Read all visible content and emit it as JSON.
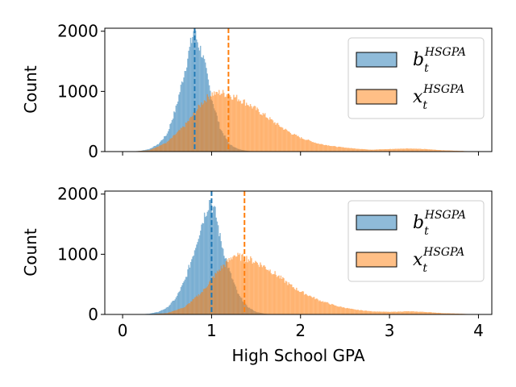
{
  "chart_data": [
    {
      "type": "histogram",
      "panel": "top",
      "xlabel": "",
      "ylabel": "Count",
      "xlim": [
        -0.2,
        4.15
      ],
      "ylim": [
        0,
        2050
      ],
      "yticks": [
        0,
        1000,
        2000
      ],
      "ytick_labels": [
        "0",
        "1000",
        "2000"
      ],
      "xticks": [
        0,
        1,
        2,
        3,
        4
      ],
      "xtick_labels": [],
      "series": [
        {
          "name": "b_t^HSGPA",
          "label_main": "b",
          "label_sub": "t",
          "label_sup": "HSGPA",
          "color": "#1f77b4",
          "mean_line": 0.81,
          "peak_x": 0.8,
          "peak_count": 2000,
          "profile": [
            [
              0.1,
              0
            ],
            [
              0.2,
              10
            ],
            [
              0.3,
              40
            ],
            [
              0.4,
              120
            ],
            [
              0.5,
              290
            ],
            [
              0.6,
              720
            ],
            [
              0.7,
              1350
            ],
            [
              0.8,
              2000
            ],
            [
              0.9,
              1600
            ],
            [
              1.0,
              900
            ],
            [
              1.1,
              380
            ],
            [
              1.2,
              120
            ],
            [
              1.3,
              40
            ],
            [
              1.4,
              10
            ],
            [
              1.5,
              0
            ]
          ]
        },
        {
          "name": "x_t^HSGPA",
          "label_main": "x",
          "label_sub": "t",
          "label_sup": "HSGPA",
          "color": "#ff7f0e",
          "mean_line": 1.19,
          "peak_x": 1.05,
          "peak_count": 990,
          "profile": [
            [
              0.1,
              0
            ],
            [
              0.3,
              20
            ],
            [
              0.5,
              150
            ],
            [
              0.7,
              430
            ],
            [
              0.8,
              620
            ],
            [
              0.9,
              820
            ],
            [
              1.0,
              960
            ],
            [
              1.1,
              980
            ],
            [
              1.2,
              940
            ],
            [
              1.3,
              880
            ],
            [
              1.4,
              800
            ],
            [
              1.5,
              700
            ],
            [
              1.6,
              600
            ],
            [
              1.7,
              490
            ],
            [
              1.8,
              390
            ],
            [
              1.9,
              300
            ],
            [
              2.0,
              230
            ],
            [
              2.2,
              130
            ],
            [
              2.4,
              80
            ],
            [
              2.6,
              50
            ],
            [
              2.8,
              30
            ],
            [
              3.0,
              40
            ],
            [
              3.2,
              50
            ],
            [
              3.4,
              40
            ],
            [
              3.6,
              20
            ],
            [
              3.8,
              10
            ],
            [
              3.95,
              0
            ]
          ]
        }
      ]
    },
    {
      "type": "histogram",
      "panel": "bottom",
      "xlabel": "High School GPA",
      "ylabel": "Count",
      "xlim": [
        -0.2,
        4.15
      ],
      "ylim": [
        0,
        2050
      ],
      "yticks": [
        0,
        1000,
        2000
      ],
      "ytick_labels": [
        "0",
        "1000",
        "2000"
      ],
      "xticks": [
        0,
        1,
        2,
        3,
        4
      ],
      "xtick_labels": [
        "0",
        "1",
        "2",
        "3",
        "4"
      ],
      "series": [
        {
          "name": "b_t^HSGPA",
          "label_main": "b",
          "label_sub": "t",
          "label_sup": "HSGPA",
          "color": "#1f77b4",
          "mean_line": 1.0,
          "peak_x": 0.98,
          "peak_count": 1900,
          "profile": [
            [
              0.2,
              0
            ],
            [
              0.3,
              10
            ],
            [
              0.4,
              40
            ],
            [
              0.5,
              110
            ],
            [
              0.6,
              270
            ],
            [
              0.7,
              560
            ],
            [
              0.8,
              1030
            ],
            [
              0.9,
              1560
            ],
            [
              0.98,
              1900
            ],
            [
              1.05,
              1650
            ],
            [
              1.1,
              1250
            ],
            [
              1.2,
              720
            ],
            [
              1.3,
              330
            ],
            [
              1.4,
              130
            ],
            [
              1.5,
              40
            ],
            [
              1.6,
              10
            ],
            [
              1.7,
              0
            ]
          ]
        },
        {
          "name": "x_t^HSGPA",
          "label_main": "x",
          "label_sub": "t",
          "label_sup": "HSGPA",
          "color": "#ff7f0e",
          "mean_line": 1.37,
          "peak_x": 1.25,
          "peak_count": 980,
          "profile": [
            [
              0.3,
              0
            ],
            [
              0.5,
              20
            ],
            [
              0.7,
              120
            ],
            [
              0.9,
              380
            ],
            [
              1.0,
              580
            ],
            [
              1.1,
              760
            ],
            [
              1.2,
              900
            ],
            [
              1.25,
              980
            ],
            [
              1.3,
              960
            ],
            [
              1.4,
              930
            ],
            [
              1.5,
              870
            ],
            [
              1.6,
              790
            ],
            [
              1.7,
              690
            ],
            [
              1.8,
              580
            ],
            [
              1.9,
              470
            ],
            [
              2.0,
              380
            ],
            [
              2.2,
              240
            ],
            [
              2.4,
              140
            ],
            [
              2.6,
              80
            ],
            [
              2.8,
              50
            ],
            [
              3.0,
              40
            ],
            [
              3.2,
              50
            ],
            [
              3.4,
              40
            ],
            [
              3.6,
              20
            ],
            [
              3.8,
              10
            ],
            [
              3.95,
              0
            ]
          ]
        }
      ]
    }
  ]
}
